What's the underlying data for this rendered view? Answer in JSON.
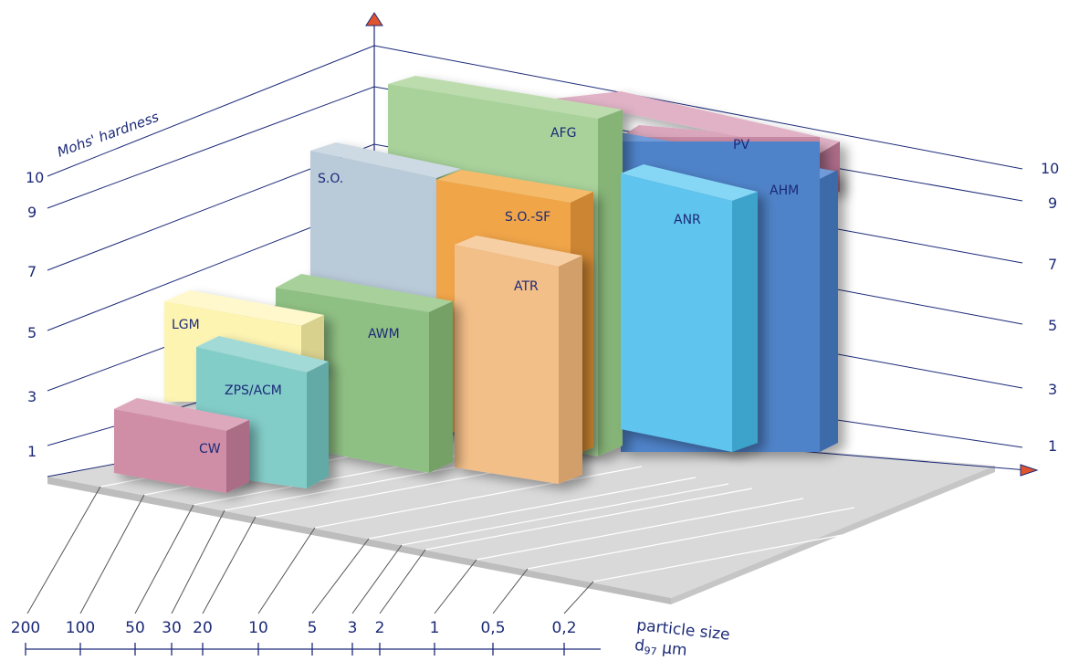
{
  "axes": {
    "vertical_title": "Mohs' hardness",
    "left_ticks": [
      "10",
      "9",
      "7",
      "5",
      "3",
      "1"
    ],
    "right_ticks": [
      "10",
      "9",
      "7",
      "5",
      "3",
      "1"
    ],
    "size_ticks": [
      "200",
      "100",
      "50",
      "30",
      "20",
      "10",
      "5",
      "3",
      "2",
      "1",
      "0,5",
      "0,2"
    ],
    "size_title_line1": "particle size",
    "size_title_line2_main": "d",
    "size_title_line2_sub": "97",
    "size_title_line2_unit": " µm"
  },
  "boxes": [
    {
      "id": "pv",
      "label": "PV",
      "color": "#c98aa5"
    },
    {
      "id": "ahm",
      "label": "AHM",
      "color": "#4f83c9"
    },
    {
      "id": "afg",
      "label": "AFG",
      "color": "#a8d29a"
    },
    {
      "id": "anr",
      "label": "ANR",
      "color": "#5ec4ee"
    },
    {
      "id": "so",
      "label": "S.O.",
      "color": "#b9cad9"
    },
    {
      "id": "sosf",
      "label": "S.O.-SF",
      "color": "#f1a54a"
    },
    {
      "id": "atr",
      "label": "ATR",
      "color": "#f3bf89"
    },
    {
      "id": "awm",
      "label": "AWM",
      "color": "#8fc083"
    },
    {
      "id": "lgm",
      "label": "LGM",
      "color": "#fdf4b2"
    },
    {
      "id": "zps",
      "label": "ZPS/ACM",
      "color": "#83cdc9"
    },
    {
      "id": "cw",
      "label": "CW",
      "color": "#d08ea6"
    }
  ],
  "colors": {
    "axis": "#1c2a78",
    "arrow": "#e0532f",
    "floor": "#cfcfcf"
  }
}
